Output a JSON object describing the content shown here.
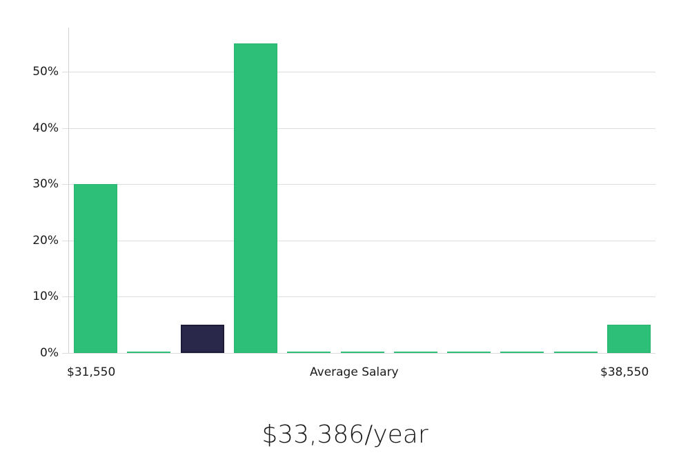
{
  "chart_data": {
    "type": "bar",
    "title": "",
    "xlabel": "Average Salary",
    "ylabel": "",
    "x_range_labels": {
      "min": "$31,550",
      "max": "$38,550"
    },
    "categories": [
      "bin1",
      "bin2",
      "bin3",
      "bin4",
      "bin5",
      "bin6",
      "bin7",
      "bin8",
      "bin9",
      "bin10",
      "bin11"
    ],
    "values": [
      30,
      0,
      5,
      55,
      0,
      0,
      0,
      0,
      0,
      0,
      5
    ],
    "highlight_index": 2,
    "ylim": [
      0,
      58
    ],
    "yticks": [
      0,
      10,
      20,
      30,
      40,
      50
    ],
    "ytick_labels": [
      "0%",
      "10%",
      "20%",
      "30%",
      "40%",
      "50%"
    ],
    "grid": true,
    "colors": {
      "bar": "#2dbf78",
      "highlight": "#29284a",
      "grid": "#dcdcdc",
      "axis": "#d0d0d0"
    }
  },
  "summary": {
    "salary_text": "$33,386/year"
  }
}
